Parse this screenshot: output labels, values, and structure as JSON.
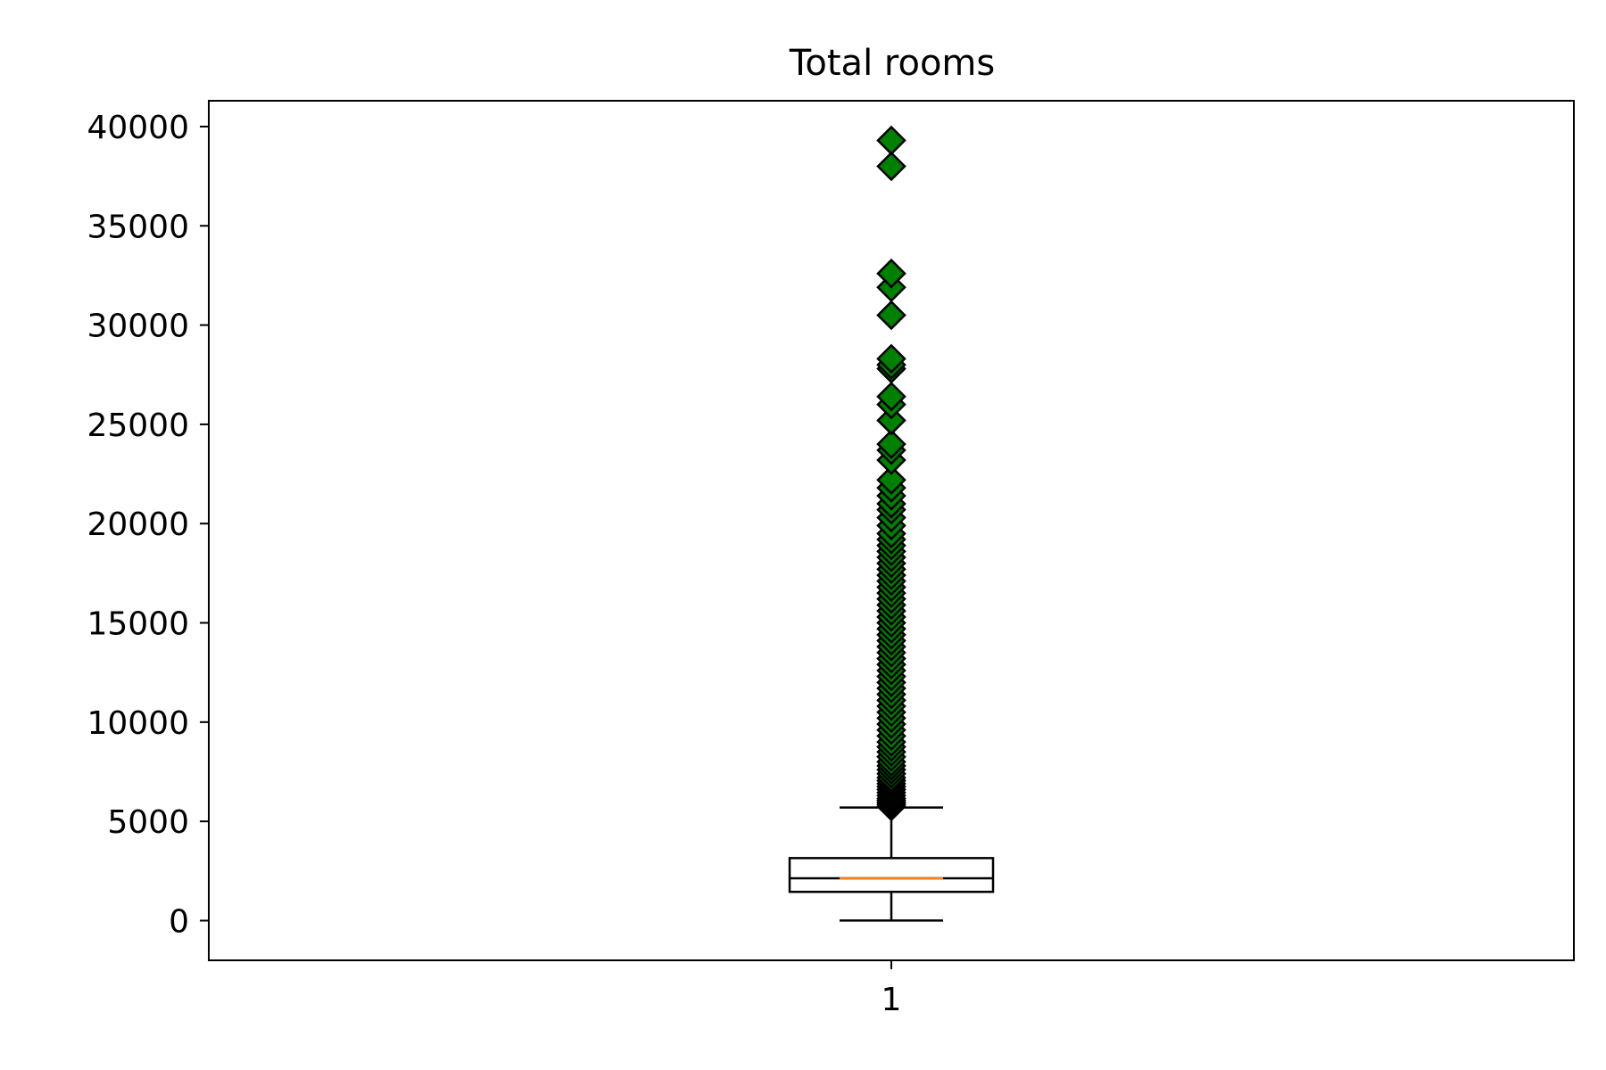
{
  "chart_data": {
    "type": "box",
    "title": "Total rooms",
    "xlabel": "",
    "ylabel": "",
    "categories": [
      "1"
    ],
    "ylim": [
      -2000,
      41300
    ],
    "yticks": [
      0,
      5000,
      10000,
      15000,
      20000,
      25000,
      30000,
      35000,
      40000
    ],
    "grid": false,
    "box": {
      "whisker_low": 2,
      "q1": 1450,
      "median": 2130,
      "q3": 3150,
      "whisker_high": 5700
    },
    "outliers": [
      5750,
      5850,
      5950,
      6050,
      6150,
      6300,
      6450,
      6600,
      6750,
      6900,
      7050,
      7200,
      7400,
      7600,
      7800,
      8000,
      8250,
      8500,
      8750,
      9000,
      9300,
      9600,
      9900,
      10200,
      10500,
      10800,
      11100,
      11400,
      11700,
      12000,
      12300,
      12600,
      12900,
      13200,
      13500,
      13800,
      14100,
      14400,
      14700,
      15000,
      15300,
      15600,
      15900,
      16200,
      16500,
      16800,
      17100,
      17400,
      17700,
      18000,
      18300,
      18600,
      18900,
      19200,
      19500,
      19900,
      20300,
      20700,
      21000,
      21400,
      21800,
      22200,
      23200,
      23700,
      24000,
      25200,
      26000,
      26400,
      27800,
      28000,
      28300,
      30500,
      31900,
      32600,
      38000,
      39300
    ],
    "colors": {
      "box": "#000000",
      "median": "#ff7f0e",
      "outlier_fill": "#008000",
      "outlier_edge": "#000000"
    },
    "outlier_marker": "diamond"
  }
}
